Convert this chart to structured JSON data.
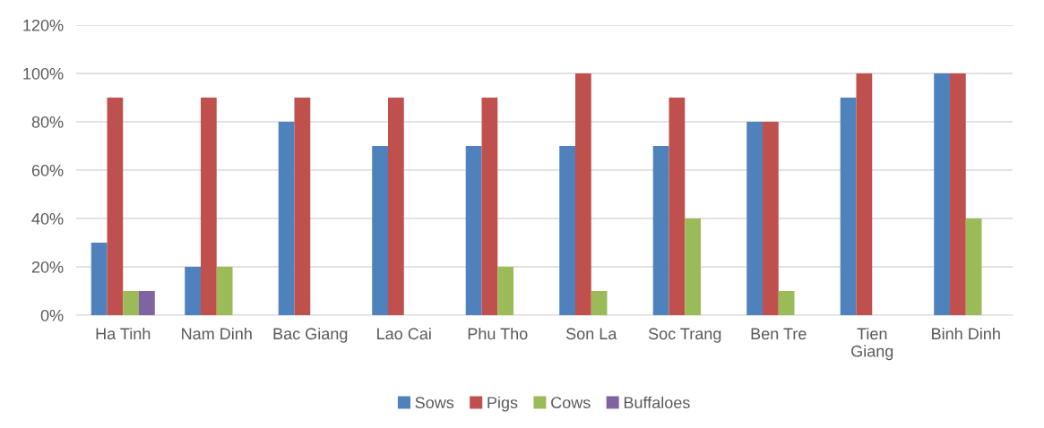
{
  "chart_data": {
    "type": "bar",
    "categories": [
      "Ha Tinh",
      "Nam Dinh",
      "Bac Giang",
      "Lao Cai",
      "Phu Tho",
      "Son La",
      "Soc Trang",
      "Ben Tre",
      "Tien Giang",
      "Binh Dinh"
    ],
    "series": [
      {
        "name": "Sows",
        "color": "#4f81bd",
        "values": [
          30,
          20,
          80,
          70,
          70,
          70,
          70,
          80,
          90,
          100
        ]
      },
      {
        "name": "Pigs",
        "color": "#c0504d",
        "values": [
          90,
          90,
          90,
          90,
          90,
          100,
          90,
          80,
          100,
          100
        ]
      },
      {
        "name": "Cows",
        "color": "#9bbb59",
        "values": [
          10,
          20,
          0,
          0,
          20,
          10,
          40,
          10,
          0,
          40
        ]
      },
      {
        "name": "Buffaloes",
        "color": "#8064a2",
        "values": [
          10,
          0,
          0,
          0,
          0,
          0,
          0,
          0,
          0,
          0
        ]
      }
    ],
    "ylim": [
      0,
      120
    ],
    "yticks": [
      {
        "value": 0,
        "label": "0%"
      },
      {
        "value": 20,
        "label": "20%"
      },
      {
        "value": 40,
        "label": "40%"
      },
      {
        "value": 60,
        "label": "60%"
      },
      {
        "value": 80,
        "label": "80%"
      },
      {
        "value": 100,
        "label": "100%"
      },
      {
        "value": 120,
        "label": "120%"
      }
    ],
    "grid": "y",
    "legend": "bottom"
  }
}
